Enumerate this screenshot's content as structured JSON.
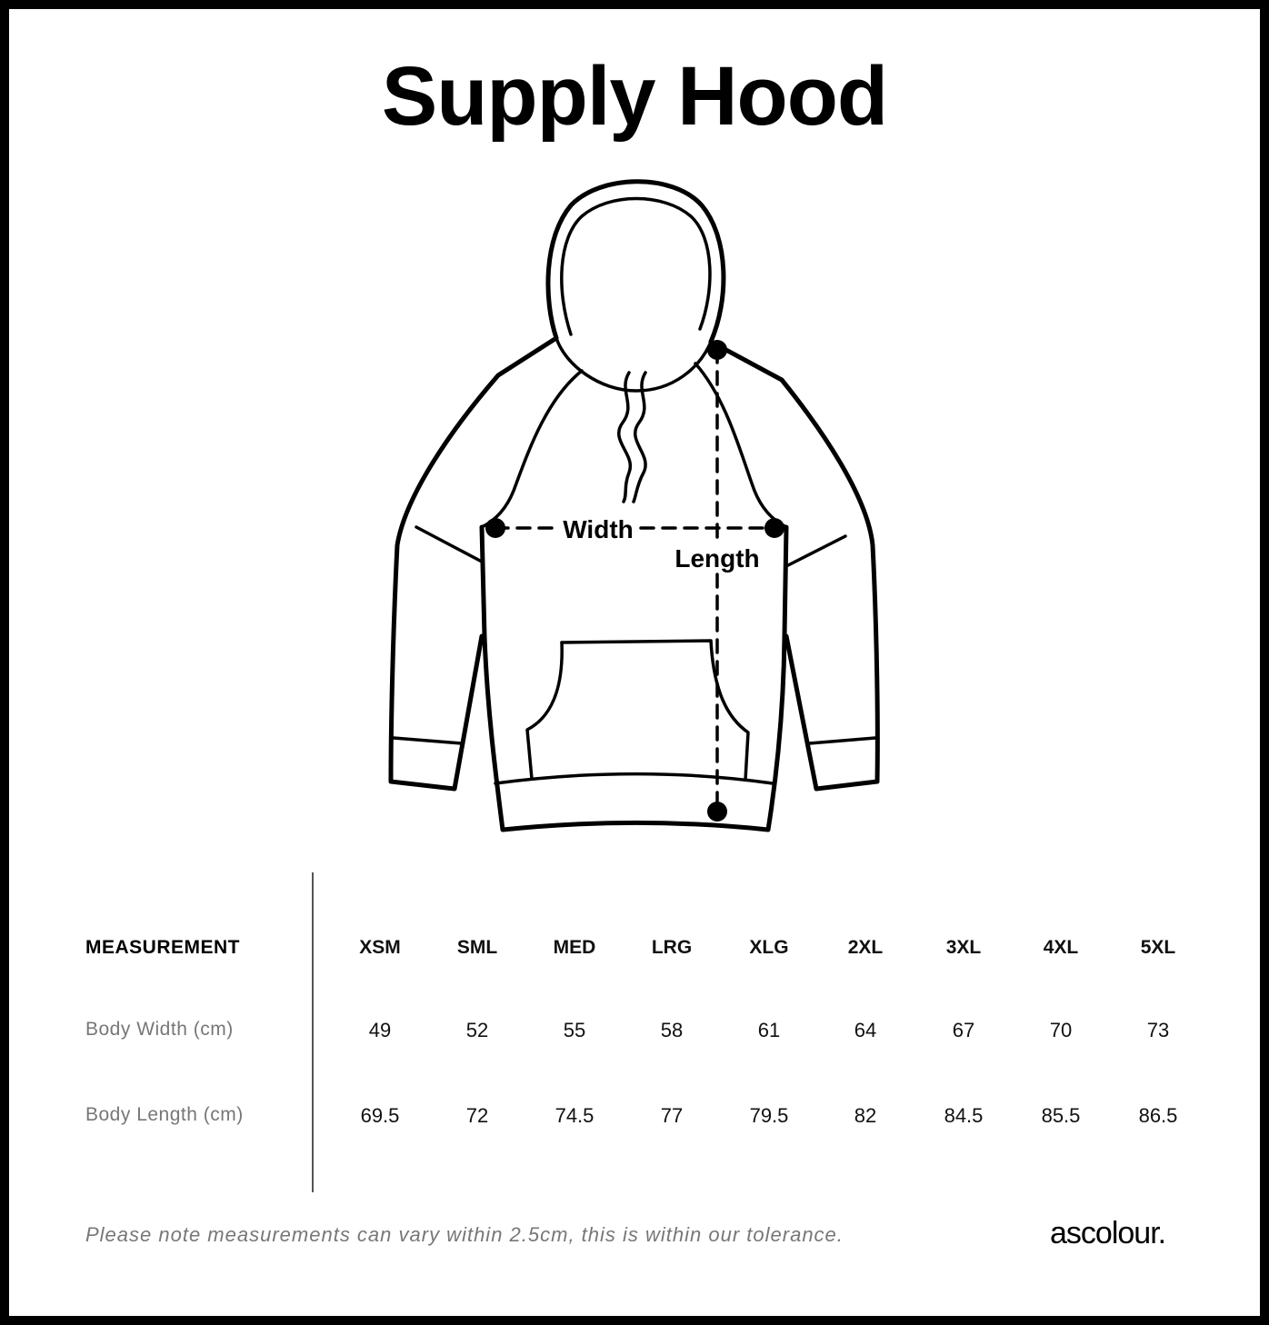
{
  "title": "Supply Hood",
  "diagram": {
    "width_label": "Width",
    "length_label": "Length"
  },
  "table": {
    "header_label": "MEASUREMENT",
    "sizes": [
      "XSM",
      "SML",
      "MED",
      "LRG",
      "XLG",
      "2XL",
      "3XL",
      "4XL",
      "5XL"
    ],
    "rows": [
      {
        "label": "Body Width (cm)",
        "values": [
          "49",
          "52",
          "55",
          "58",
          "61",
          "64",
          "67",
          "70",
          "73"
        ]
      },
      {
        "label": "Body Length (cm)",
        "values": [
          "69.5",
          "72",
          "74.5",
          "77",
          "79.5",
          "82",
          "84.5",
          "85.5",
          "86.5"
        ]
      }
    ]
  },
  "footer": {
    "note": "Please note measurements can vary within 2.5cm, this is within our tolerance.",
    "logo": "ascolour."
  }
}
